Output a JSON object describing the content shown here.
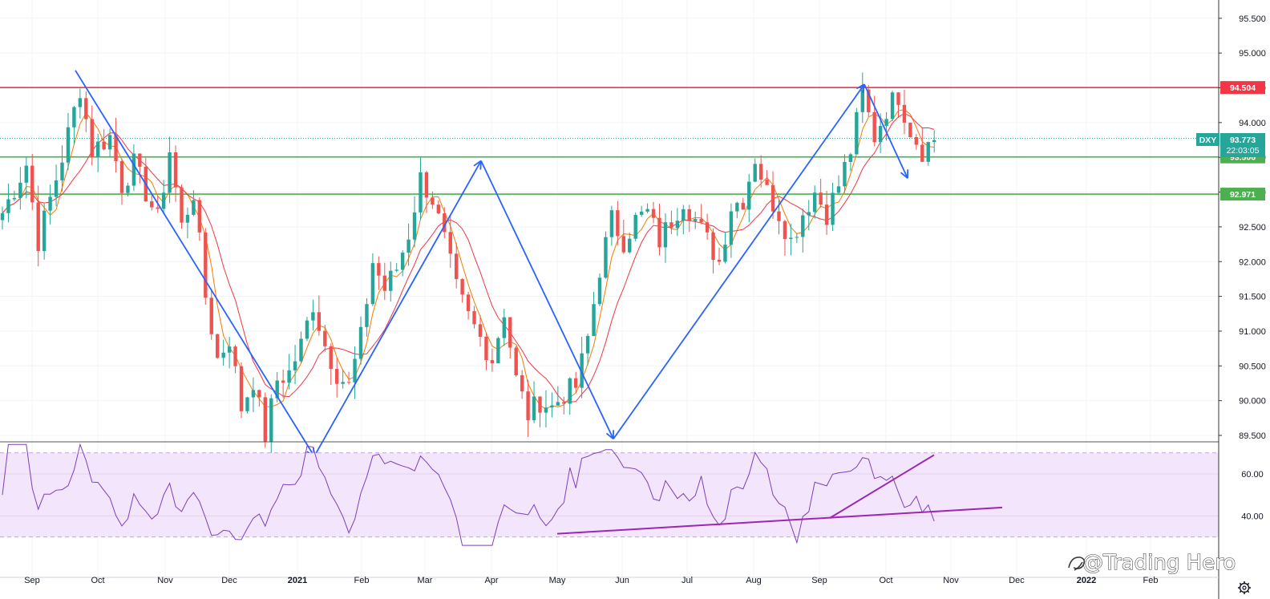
{
  "chart_data": [
    {
      "type": "candlestick",
      "symbol": "DXY",
      "last_price": "93.773",
      "countdown": "22:03:05",
      "x_axis_labels": [
        "Sep",
        "Oct",
        "Nov",
        "Dec",
        "2021",
        "Feb",
        "Mar",
        "Apr",
        "May",
        "Jun",
        "Jul",
        "Aug",
        "Sep",
        "Oct",
        "Nov",
        "Dec",
        "2022",
        "Feb"
      ],
      "y_axis": {
        "ylim": [
          89.3,
          95.75
        ],
        "ticks": [
          "95.500",
          "95.000",
          "94.500",
          "94.000",
          "93.500",
          "93.000",
          "92.500",
          "92.000",
          "91.500",
          "91.000",
          "90.500",
          "90.000",
          "89.500"
        ]
      },
      "horizontal_levels": [
        {
          "value": 94.504,
          "label": "94.504",
          "color": "#f23645"
        },
        {
          "value": 93.506,
          "label": "93.506",
          "color": "#4caf50"
        },
        {
          "value": 92.971,
          "label": "92.971",
          "color": "#4caf50"
        }
      ],
      "close_path": [
        [
          0,
          92.7
        ],
        [
          4,
          93.4
        ],
        [
          6,
          92.3
        ],
        [
          10,
          93.5
        ],
        [
          13,
          94.5
        ],
        [
          15,
          93.6
        ],
        [
          18,
          93.8
        ],
        [
          20,
          93.1
        ],
        [
          22,
          93.4
        ],
        [
          24,
          93.0
        ],
        [
          26,
          92.6
        ],
        [
          28,
          93.6
        ],
        [
          30,
          92.5
        ],
        [
          32,
          93.0
        ],
        [
          34,
          91.5
        ],
        [
          36,
          90.6
        ],
        [
          38,
          90.9
        ],
        [
          40,
          89.9
        ],
        [
          42,
          90.3
        ],
        [
          44,
          89.5
        ],
        [
          46,
          90.3
        ],
        [
          48,
          90.4
        ],
        [
          50,
          90.8
        ],
        [
          52,
          91.4
        ],
        [
          54,
          90.8
        ],
        [
          56,
          90.4
        ],
        [
          58,
          90.2
        ],
        [
          60,
          90.9
        ],
        [
          62,
          92.0
        ],
        [
          64,
          91.6
        ],
        [
          66,
          91.9
        ],
        [
          68,
          92.4
        ],
        [
          70,
          93.2
        ],
        [
          72,
          92.9
        ],
        [
          74,
          92.3
        ],
        [
          76,
          91.6
        ],
        [
          78,
          91.2
        ],
        [
          80,
          90.9
        ],
        [
          82,
          90.6
        ],
        [
          84,
          91.3
        ],
        [
          86,
          90.3
        ],
        [
          88,
          89.8
        ],
        [
          90,
          90.0
        ],
        [
          92,
          89.9
        ],
        [
          94,
          90.1
        ],
        [
          96,
          90.2
        ],
        [
          98,
          90.9
        ],
        [
          100,
          91.9
        ],
        [
          102,
          92.6
        ],
        [
          104,
          92.3
        ],
        [
          106,
          92.6
        ],
        [
          108,
          92.7
        ],
        [
          110,
          92.3
        ],
        [
          112,
          92.6
        ],
        [
          114,
          92.9
        ],
        [
          116,
          92.6
        ],
        [
          118,
          92.3
        ],
        [
          120,
          92.0
        ],
        [
          122,
          92.8
        ],
        [
          124,
          92.9
        ],
        [
          126,
          93.5
        ],
        [
          128,
          93.0
        ],
        [
          130,
          92.7
        ],
        [
          132,
          92.3
        ],
        [
          134,
          92.7
        ],
        [
          136,
          93.0
        ],
        [
          138,
          92.7
        ],
        [
          140,
          93.1
        ],
        [
          142,
          93.6
        ],
        [
          144,
          94.4
        ],
        [
          146,
          93.8
        ],
        [
          148,
          94.2
        ],
        [
          150,
          94.4
        ],
        [
          152,
          93.9
        ],
        [
          154,
          93.6
        ],
        [
          156,
          93.77
        ]
      ],
      "indicators": [
        {
          "type": "moving_average",
          "color": "#f57c00"
        },
        {
          "type": "moving_average",
          "color": "#f23645"
        }
      ],
      "annotations": [
        {
          "type": "zigzag",
          "color": "#2962ff",
          "points": [
            [
              "Sep",
              94.75
            ],
            [
              "Jan",
              89.2
            ],
            [
              "Apr",
              93.45
            ],
            [
              "Jun",
              89.45
            ],
            [
              "Sep",
              94.55
            ],
            [
              "Oct",
              93.2
            ]
          ]
        }
      ]
    },
    {
      "type": "line",
      "indicator": "RSI",
      "y_axis": {
        "ticks": [
          "60.00",
          "40.00"
        ],
        "band": [
          30,
          70
        ]
      },
      "trendlines": [
        {
          "from": [
            "May",
            31.5
          ],
          "to": [
            "Nov",
            44
          ]
        },
        {
          "from": [
            "Sep",
            39
          ],
          "to": [
            "Oct",
            69
          ]
        }
      ]
    }
  ],
  "watermark": "@Trading Hero",
  "ui": {
    "settings_icon": "gear-icon"
  },
  "colors": {
    "up": "#26a69a",
    "down": "#ef5350",
    "zigzag": "#2962ff",
    "rsi": "#7e3dbf",
    "rsi_band": "#f3e5fc"
  }
}
